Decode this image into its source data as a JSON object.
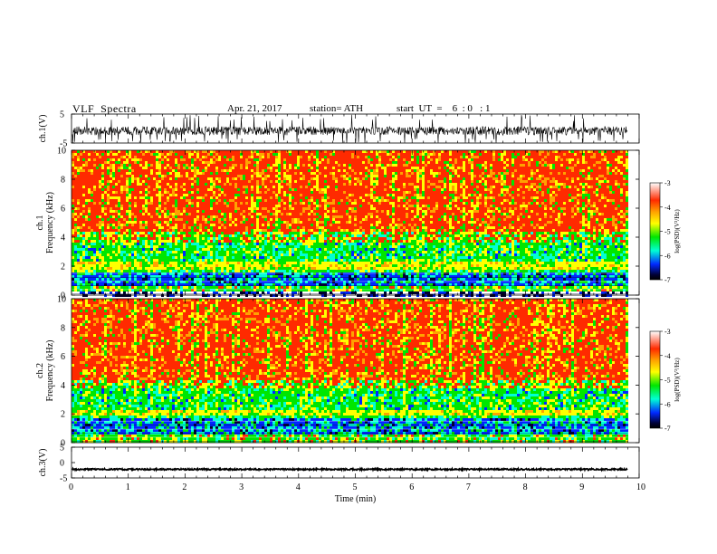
{
  "header": {
    "title": "VLF  Spectra",
    "date": "Apr. 21, 2017",
    "station": "station= ATH",
    "start_ut": "start  UT  =    6  : 0   : 1"
  },
  "chart_data": [
    {
      "type": "line",
      "name": "ch1-waveform",
      "ylabel": "ch.1(V)",
      "xlim": [
        0,
        10
      ],
      "ylim": [
        -5,
        5
      ],
      "yticks": [
        5,
        -5
      ],
      "trace": {
        "baseline": -0.8,
        "noise_amplitude": 1.5,
        "spike_to": -5,
        "color": "#000000"
      }
    },
    {
      "type": "heatmap",
      "name": "ch1-spectrogram",
      "ylabel": "ch.1\nFrequency  (kHz)",
      "xlim": [
        0,
        9.8
      ],
      "ylim": [
        0,
        10
      ],
      "yticks": [
        "0",
        "2",
        "4",
        "6",
        "8",
        "10"
      ],
      "bands_khz": {
        "red_above": 4.0,
        "green_band": [
          2.2,
          4.0
        ],
        "yellow_band": [
          1.8,
          2.2
        ],
        "blue_band": [
          0.8,
          1.6
        ],
        "gap": [
          0.0,
          0.3
        ]
      },
      "colorbar": {
        "label": "log(PSD)(V²/Hz)",
        "ticks": [
          "-3",
          "-4",
          "-5",
          "-6",
          "-7"
        ],
        "range": [
          -7,
          -3
        ]
      }
    },
    {
      "type": "heatmap",
      "name": "ch2-spectrogram",
      "ylabel": "ch.2\nFrequency  (kHz)",
      "xlim": [
        0,
        9.8
      ],
      "ylim": [
        0,
        10
      ],
      "yticks": [
        "0",
        "2",
        "4",
        "6",
        "8",
        "10"
      ],
      "bands_khz": {
        "red_above": 4.0,
        "green_band": [
          2.0,
          4.0
        ],
        "yellow_band": [
          1.8,
          2.1
        ],
        "blue_band": [
          0.5,
          1.7
        ],
        "gap": null
      },
      "colorbar": {
        "label": "log(PSD)(V²/Hz)",
        "ticks": [
          "-3",
          "-4",
          "-5",
          "-6",
          "-7"
        ],
        "range": [
          -7,
          -3
        ]
      }
    },
    {
      "type": "line",
      "name": "ch3-waveform",
      "ylabel": "ch.3(V)",
      "xlim": [
        0,
        10
      ],
      "ylim": [
        -5,
        5
      ],
      "yticks": [
        5,
        0,
        -5
      ],
      "trace": {
        "baseline": -2.2,
        "noise_amplitude": 0.25,
        "color": "#000000"
      }
    }
  ],
  "x_axis": {
    "xlabel": "Time  (min)",
    "ticks": [
      "0",
      "1",
      "2",
      "3",
      "4",
      "5",
      "6",
      "7",
      "8",
      "9",
      "10"
    ],
    "xlim": [
      0,
      10
    ]
  },
  "colors": {
    "red": "#ff2a00",
    "orange": "#ffa200",
    "yellow": "#ffff00",
    "green": "#00e600",
    "cyan": "#00ffd5",
    "blue": "#0028ff",
    "dark": "#000033"
  }
}
